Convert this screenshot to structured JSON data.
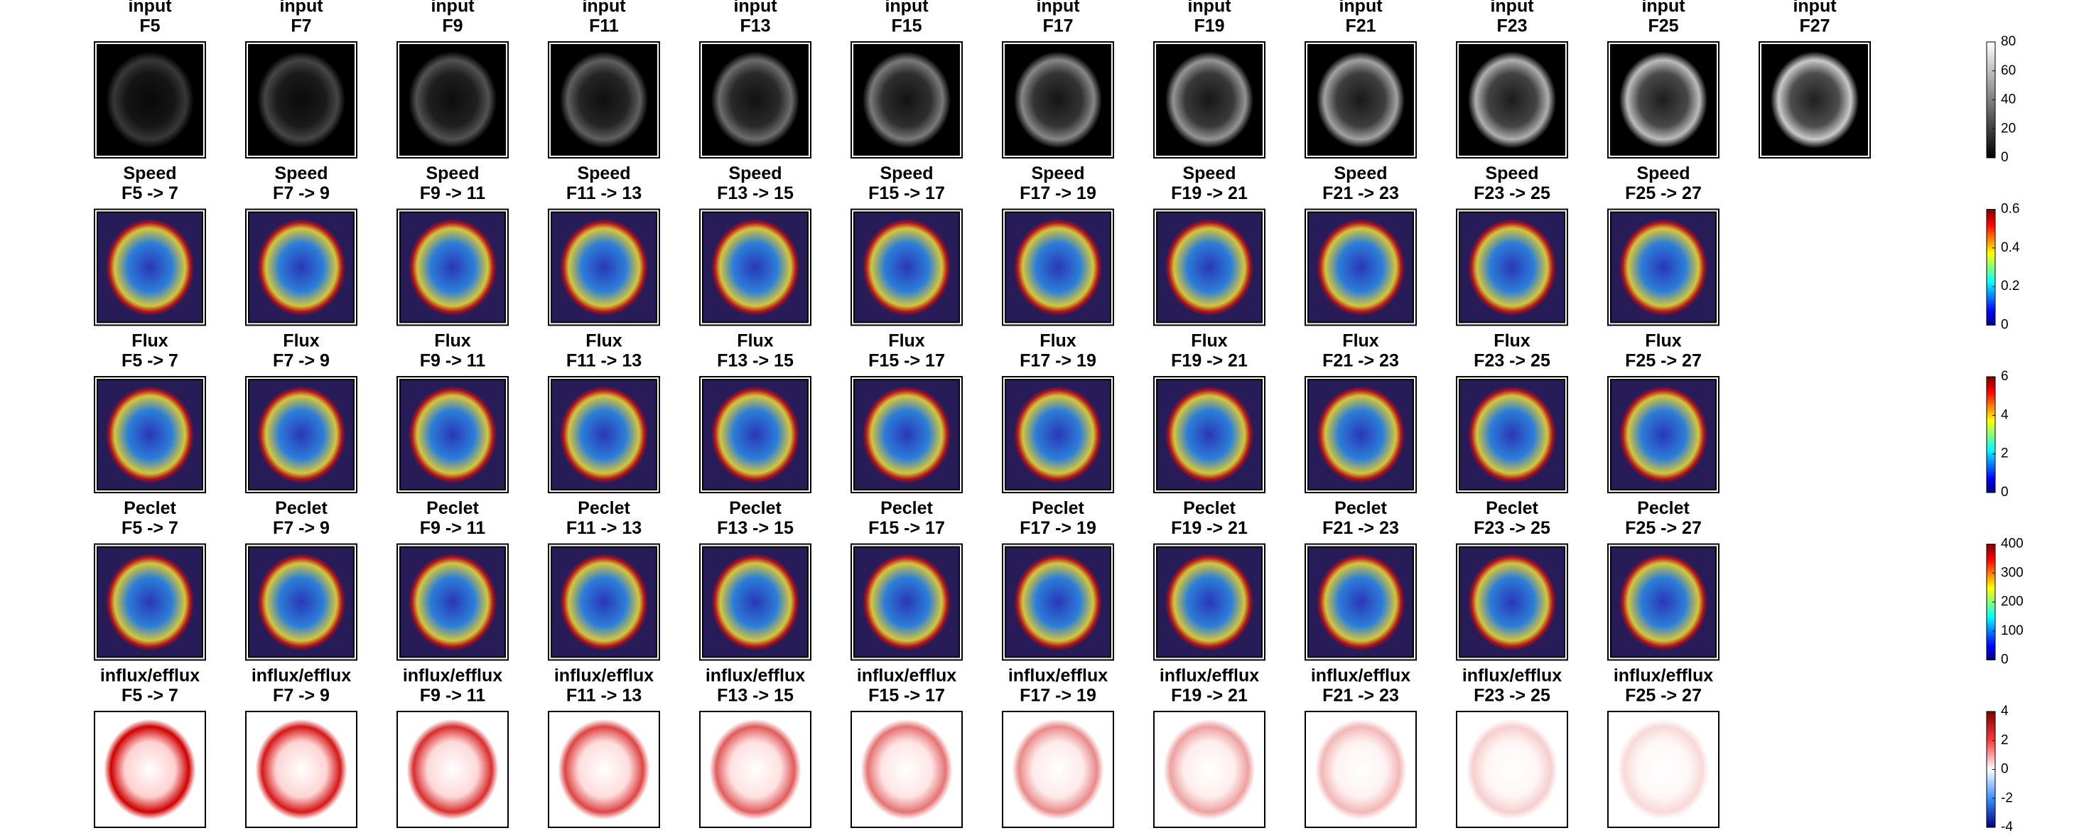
{
  "rows": [
    {
      "label": "input",
      "colormap": "gray",
      "frames": [
        "F5",
        "F7",
        "F9",
        "F11",
        "F13",
        "F15",
        "F17",
        "F19",
        "F21",
        "F23",
        "F25",
        "F27"
      ],
      "colorbar": {
        "lim": [
          0,
          80
        ],
        "ticks": [
          0,
          20,
          40,
          60,
          80
        ]
      }
    },
    {
      "label": "Speed",
      "colormap": "jet",
      "frames": [
        "F5 -> 7",
        "F7 -> 9",
        "F9 -> 11",
        "F11 -> 13",
        "F13 -> 15",
        "F15 -> 17",
        "F17 -> 19",
        "F19 -> 21",
        "F21 -> 23",
        "F23 -> 25",
        "F25 -> 27"
      ],
      "colorbar": {
        "lim": [
          0,
          0.6
        ],
        "ticks": [
          0,
          0.2,
          0.4,
          0.6
        ]
      }
    },
    {
      "label": "Flux",
      "colormap": "jet",
      "frames": [
        "F5 -> 7",
        "F7 -> 9",
        "F9 -> 11",
        "F11 -> 13",
        "F13 -> 15",
        "F15 -> 17",
        "F17 -> 19",
        "F19 -> 21",
        "F21 -> 23",
        "F23 -> 25",
        "F25 -> 27"
      ],
      "colorbar": {
        "lim": [
          0,
          6
        ],
        "ticks": [
          0,
          2,
          4,
          6
        ]
      }
    },
    {
      "label": "Peclet",
      "colormap": "jet",
      "frames": [
        "F5 -> 7",
        "F7 -> 9",
        "F9 -> 11",
        "F11 -> 13",
        "F13 -> 15",
        "F15 -> 17",
        "F17 -> 19",
        "F19 -> 21",
        "F21 -> 23",
        "F23 -> 25",
        "F25 -> 27"
      ],
      "colorbar": {
        "lim": [
          0,
          400
        ],
        "ticks": [
          0,
          100,
          200,
          300,
          400
        ]
      }
    },
    {
      "label": "influx/efflux",
      "colormap": "bwr",
      "frames": [
        "F5 -> 7",
        "F7 -> 9",
        "F9 -> 11",
        "F11 -> 13",
        "F13 -> 15",
        "F15 -> 17",
        "F17 -> 19",
        "F19 -> 21",
        "F21 -> 23",
        "F23 -> 25",
        "F25 -> 27"
      ],
      "colorbar": {
        "lim": [
          -4,
          4
        ],
        "ticks": [
          -4,
          -2,
          0,
          2,
          4
        ]
      }
    }
  ]
}
